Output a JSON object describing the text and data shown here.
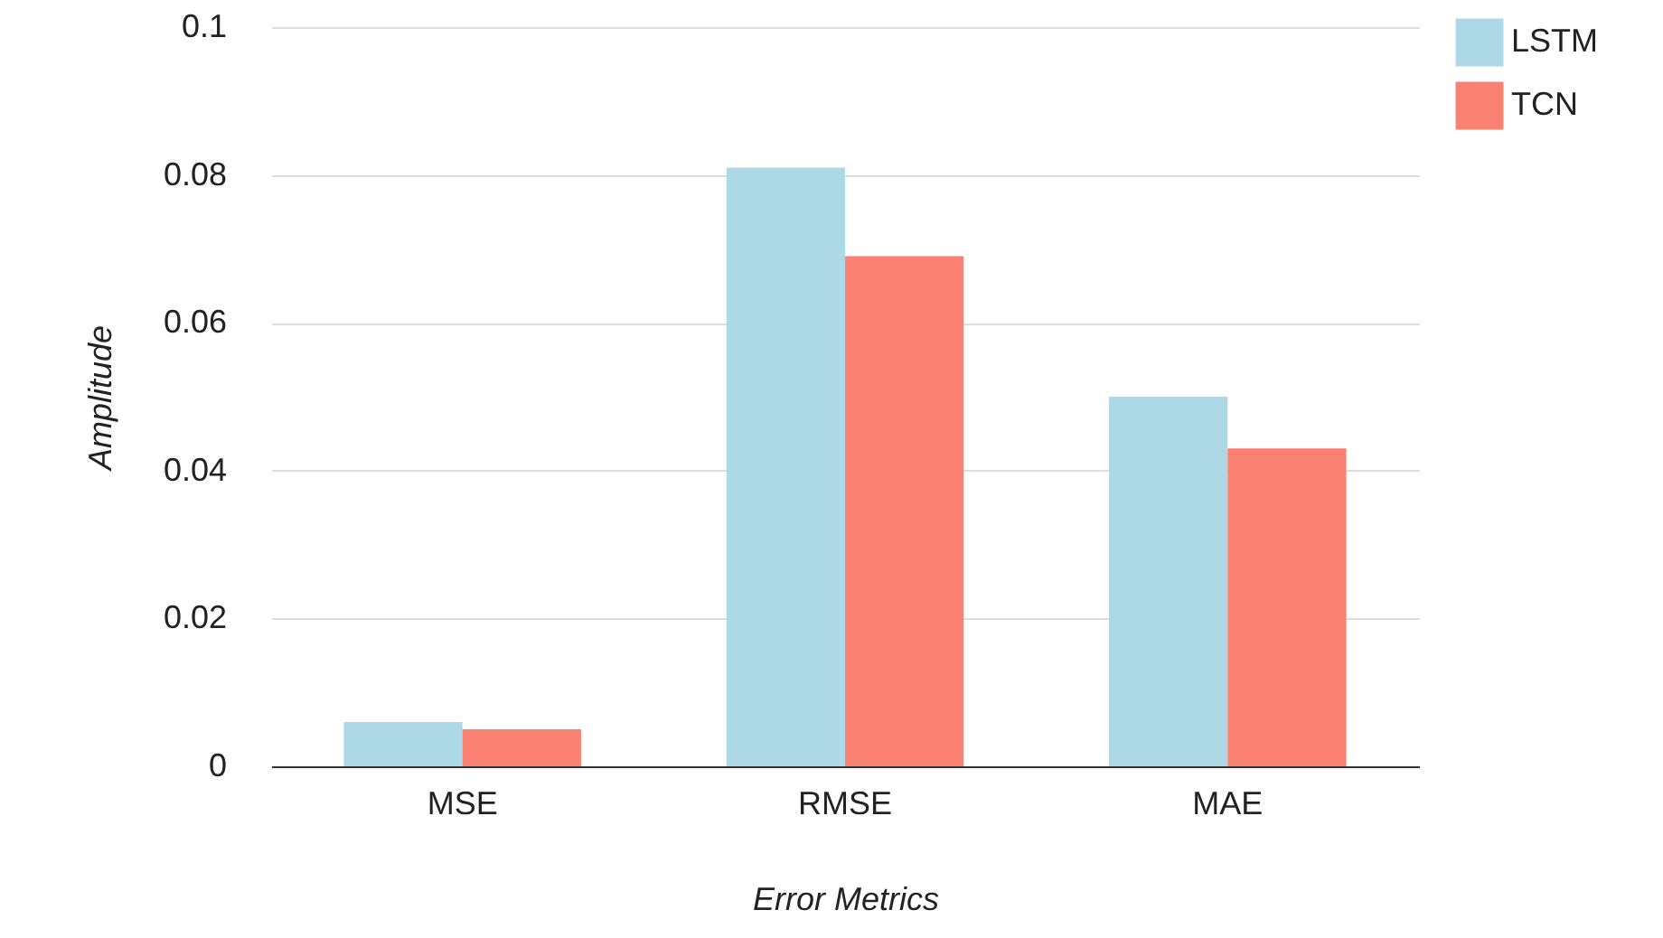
{
  "chart_data": {
    "type": "bar",
    "xlabel": "Error Metrics",
    "ylabel": "Amplitude",
    "categories": [
      "MSE",
      "RMSE",
      "MAE"
    ],
    "series": [
      {
        "name": "LSTM",
        "color": "#add8e6",
        "values": [
          0.006,
          0.081,
          0.05
        ]
      },
      {
        "name": "TCN",
        "color": "#fa8072",
        "values": [
          0.005,
          0.069,
          0.043
        ]
      }
    ],
    "ylim": [
      0,
      0.1
    ],
    "yticks": [
      0,
      0.02,
      0.04,
      0.06,
      0.08,
      0.1
    ],
    "grid": "y",
    "legend": "top right"
  }
}
